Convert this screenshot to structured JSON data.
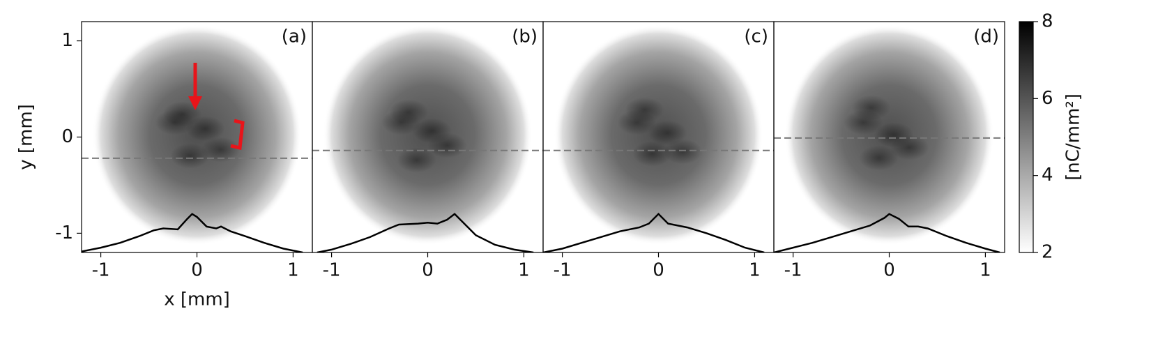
{
  "chart_data": [
    {
      "type": "heatmap",
      "label": "(a)",
      "xlim": [
        -1.2,
        1.2
      ],
      "ylim": [
        -1.2,
        1.2
      ],
      "xticks": [
        -1,
        0,
        1
      ],
      "yticks": [
        -1,
        0,
        1
      ],
      "xlabel": "x [mm]",
      "ylabel": "y [mm]",
      "cut_y": -0.22,
      "color": "#000000",
      "x": [
        -1.2,
        -1.0,
        -0.8,
        -0.6,
        -0.45,
        -0.35,
        -0.2,
        -0.1,
        -0.05,
        0.0,
        0.1,
        0.2,
        0.25,
        0.35,
        0.5,
        0.7,
        0.9,
        1.1
      ],
      "values": [
        -1.19,
        -1.15,
        -1.1,
        -1.03,
        -0.97,
        -0.95,
        -0.96,
        -0.85,
        -0.8,
        -0.83,
        -0.93,
        -0.95,
        -0.93,
        -0.98,
        -1.03,
        -1.1,
        -1.16,
        -1.2
      ]
    },
    {
      "type": "heatmap",
      "label": "(b)",
      "xlim": [
        -1.2,
        1.2
      ],
      "ylim": [
        -1.2,
        1.2
      ],
      "xticks": [
        -1,
        0,
        1
      ],
      "cut_y": -0.14,
      "color": "#000000",
      "x": [
        -1.15,
        -1.0,
        -0.8,
        -0.6,
        -0.4,
        -0.3,
        -0.1,
        0.0,
        0.1,
        0.2,
        0.28,
        0.35,
        0.5,
        0.7,
        0.9,
        1.1
      ],
      "values": [
        -1.2,
        -1.17,
        -1.11,
        -1.04,
        -0.95,
        -0.91,
        -0.9,
        -0.89,
        -0.9,
        -0.86,
        -0.8,
        -0.87,
        -1.02,
        -1.12,
        -1.17,
        -1.2
      ]
    },
    {
      "type": "heatmap",
      "label": "(c)",
      "xlim": [
        -1.2,
        1.2
      ],
      "ylim": [
        -1.2,
        1.2
      ],
      "xticks": [
        -1,
        0,
        1
      ],
      "cut_y": -0.14,
      "color": "#000000",
      "x": [
        -1.2,
        -1.0,
        -0.8,
        -0.6,
        -0.4,
        -0.2,
        -0.1,
        0.0,
        0.1,
        0.3,
        0.5,
        0.7,
        0.9,
        1.1
      ],
      "values": [
        -1.2,
        -1.16,
        -1.1,
        -1.04,
        -0.98,
        -0.94,
        -0.9,
        -0.8,
        -0.9,
        -0.94,
        -1.0,
        -1.07,
        -1.15,
        -1.2
      ]
    },
    {
      "type": "heatmap",
      "label": "(d)",
      "xlim": [
        -1.2,
        1.2
      ],
      "ylim": [
        -1.2,
        1.2
      ],
      "xticks": [
        -1,
        0,
        1
      ],
      "cut_y": -0.01,
      "color": "#000000",
      "x": [
        -1.2,
        -1.0,
        -0.8,
        -0.6,
        -0.4,
        -0.2,
        -0.05,
        0.0,
        0.1,
        0.2,
        0.3,
        0.4,
        0.6,
        0.8,
        1.0,
        1.15
      ],
      "values": [
        -1.2,
        -1.15,
        -1.1,
        -1.04,
        -0.98,
        -0.92,
        -0.84,
        -0.8,
        -0.85,
        -0.93,
        -0.93,
        -0.95,
        -1.03,
        -1.1,
        -1.16,
        -1.2
      ]
    },
    {
      "type": "colorbar",
      "label": "[nC/mm²]",
      "zlim": [
        2,
        8
      ],
      "zticks": [
        2,
        4,
        6,
        8
      ]
    }
  ]
}
